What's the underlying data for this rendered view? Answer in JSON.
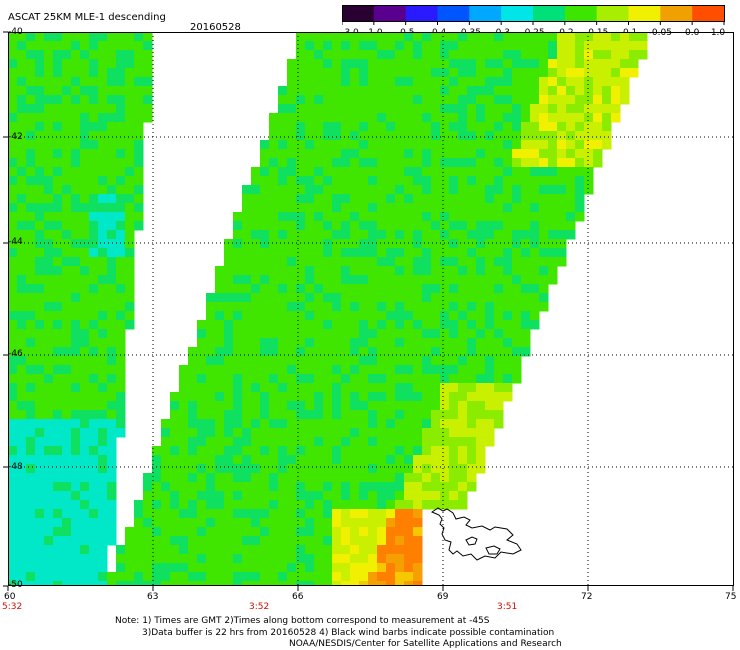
{
  "header": {
    "title": "ASCAT 25KM MLE-1 descending",
    "date": "20160528"
  },
  "colorbar": {
    "labels": [
      "-3.0",
      "-1.0",
      "-0.5",
      "-0.4",
      "-0.35",
      "-0.3",
      "-0.25",
      "-0.2",
      "-0.15",
      "-0.1",
      "-0.05",
      "0.0",
      "1.0"
    ],
    "colors": [
      "#2a0033",
      "#5a008f",
      "#2a1aff",
      "#0055ff",
      "#00a8ff",
      "#00e5e5",
      "#00e07a",
      "#3ce600",
      "#a8ee00",
      "#f0f000",
      "#f0a000",
      "#ff4e00"
    ]
  },
  "map": {
    "lon_labels": [
      "60",
      "63",
      "66",
      "69",
      "72",
      "75"
    ],
    "lat_labels": [
      "-40",
      "-42",
      "-44",
      "-46",
      "-48",
      "-50"
    ],
    "time_labels": [
      "5:32",
      "3:52",
      "3:51"
    ],
    "time_color": "#cc1100"
  },
  "notes": {
    "line1": "Note: 1) Times are GMT 2)Times along bottom correspond to measurement at -45S",
    "line2": "3)Data buffer is 22 hrs from 20160528 4) Black wind barbs indicate possible contamination",
    "line3": "NOAA/NESDIS/Center for Satellite Applications and Research"
  }
}
